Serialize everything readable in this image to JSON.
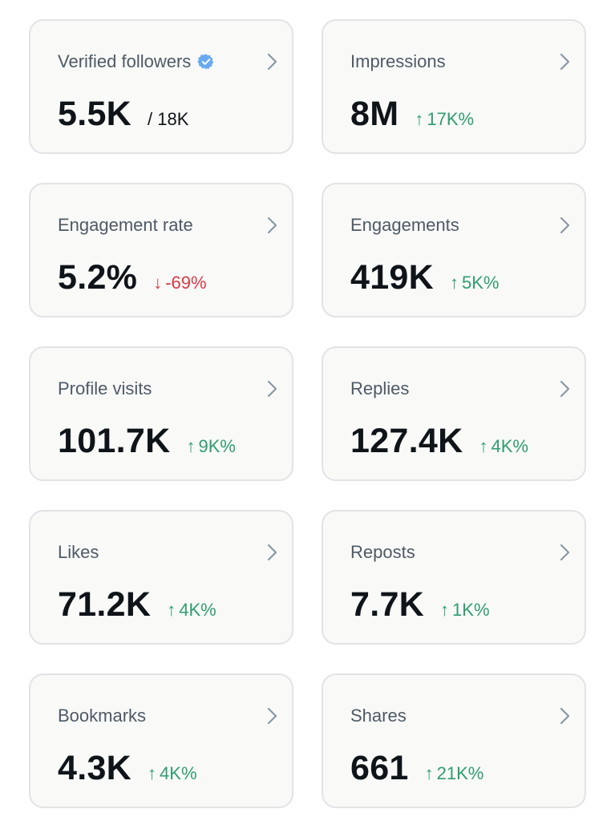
{
  "colors": {
    "positive": "#2f9e6e",
    "negative": "#d93a44",
    "label": "#4e5a66",
    "value": "#0f1419",
    "verified_badge": "#6aaaf0"
  },
  "cards": [
    {
      "title": "Verified followers",
      "value": "5.5K",
      "secondary": "/ 18K",
      "icon": "verified-badge-icon"
    },
    {
      "title": "Impressions",
      "value": "8M",
      "arrow": "↑",
      "change": "17K%",
      "direction": "up"
    },
    {
      "title": "Engagement rate",
      "value": "5.2%",
      "arrow": "↓",
      "change": "-69%",
      "direction": "down"
    },
    {
      "title": "Engagements",
      "value": "419K",
      "arrow": "↑",
      "change": "5K%",
      "direction": "up"
    },
    {
      "title": "Profile visits",
      "value": "101.7K",
      "arrow": "↑",
      "change": "9K%",
      "direction": "up"
    },
    {
      "title": "Replies",
      "value": "127.4K",
      "arrow": "↑",
      "change": "4K%",
      "direction": "up"
    },
    {
      "title": "Likes",
      "value": "71.2K",
      "arrow": "↑",
      "change": "4K%",
      "direction": "up"
    },
    {
      "title": "Reposts",
      "value": "7.7K",
      "arrow": "↑",
      "change": "1K%",
      "direction": "up"
    },
    {
      "title": "Bookmarks",
      "value": "4.3K",
      "arrow": "↑",
      "change": "4K%",
      "direction": "up"
    },
    {
      "title": "Shares",
      "value": "661",
      "arrow": "↑",
      "change": "21K%",
      "direction": "up"
    }
  ]
}
